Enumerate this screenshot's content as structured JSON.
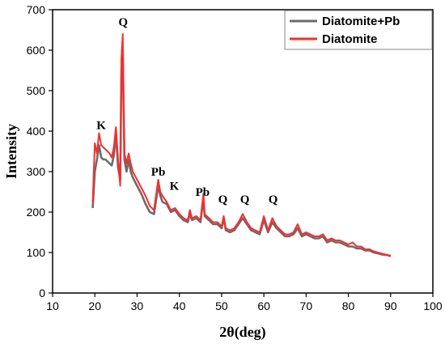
{
  "chart_data": {
    "type": "line",
    "title": "",
    "xlabel": "2θ(deg)",
    "ylabel": "Intensity",
    "xlim": [
      10,
      100
    ],
    "ylim": [
      0,
      700
    ],
    "x_ticks": [
      "10",
      "20",
      "30",
      "40",
      "50",
      "60",
      "70",
      "80",
      "90",
      "100"
    ],
    "y_ticks": [
      "0",
      "100",
      "200",
      "300",
      "400",
      "500",
      "600",
      "700"
    ],
    "grid": false,
    "legend_position": "top-right",
    "colors": {
      "Diatomite+Pb": "#6b6b6b",
      "Diatomite": "#ff2b2b"
    },
    "series": [
      {
        "name": "Diatomite+Pb",
        "x": [
          19.5,
          20,
          20.5,
          21,
          21.5,
          22,
          22.5,
          23,
          23.5,
          24,
          24.5,
          25,
          25.5,
          26,
          26.3,
          26.6,
          27,
          27.5,
          28,
          28.5,
          29,
          30,
          31,
          32,
          33,
          34,
          35,
          35.5,
          36,
          37,
          38,
          39,
          40,
          41,
          42,
          42.5,
          43,
          44,
          45,
          45.7,
          46,
          47,
          48,
          49,
          50,
          50.5,
          51,
          52,
          53,
          54,
          55,
          56,
          57,
          58,
          59,
          60,
          61,
          62,
          63,
          64,
          65,
          66,
          67,
          68,
          69,
          70,
          71,
          72,
          73,
          74,
          75,
          76,
          77,
          78,
          79,
          80,
          81,
          82,
          83,
          84,
          85,
          86,
          87,
          88,
          89,
          90
        ],
        "y": [
          210,
          300,
          330,
          365,
          335,
          330,
          330,
          325,
          320,
          315,
          340,
          395,
          310,
          280,
          555,
          600,
          330,
          300,
          330,
          300,
          285,
          265,
          245,
          220,
          200,
          195,
          265,
          240,
          225,
          220,
          200,
          205,
          190,
          180,
          175,
          195,
          180,
          185,
          175,
          235,
          190,
          180,
          170,
          170,
          160,
          185,
          155,
          150,
          155,
          170,
          185,
          170,
          155,
          150,
          145,
          180,
          150,
          175,
          160,
          150,
          140,
          140,
          145,
          160,
          140,
          145,
          140,
          135,
          135,
          140,
          125,
          130,
          125,
          125,
          120,
          115,
          115,
          110,
          110,
          105,
          105,
          100,
          98,
          95,
          94,
          92
        ]
      },
      {
        "name": "Diatomite",
        "x": [
          19.5,
          20,
          20.5,
          21,
          21.5,
          22,
          22.5,
          23,
          23.5,
          24,
          24.5,
          25,
          25.5,
          26,
          26.3,
          26.6,
          27,
          27.5,
          28,
          28.5,
          29,
          30,
          31,
          32,
          33,
          34,
          35,
          35.5,
          36,
          37,
          38,
          39,
          40,
          41,
          42,
          42.5,
          43,
          44,
          45,
          45.7,
          46,
          47,
          48,
          49,
          50,
          50.5,
          51,
          52,
          53,
          54,
          55,
          56,
          57,
          58,
          59,
          60,
          61,
          62,
          63,
          64,
          65,
          66,
          67,
          68,
          69,
          70,
          71,
          72,
          73,
          74,
          75,
          76,
          77,
          78,
          79,
          80,
          81,
          82,
          83,
          84,
          85,
          86,
          87,
          88,
          89,
          90
        ],
        "y": [
          225,
          370,
          345,
          395,
          365,
          360,
          355,
          350,
          345,
          335,
          360,
          410,
          330,
          265,
          580,
          640,
          345,
          320,
          345,
          320,
          300,
          280,
          260,
          240,
          215,
          205,
          280,
          250,
          240,
          225,
          205,
          210,
          195,
          185,
          180,
          205,
          185,
          190,
          180,
          245,
          195,
          185,
          175,
          175,
          165,
          190,
          160,
          155,
          160,
          175,
          195,
          175,
          160,
          155,
          150,
          190,
          155,
          185,
          165,
          155,
          145,
          145,
          150,
          170,
          145,
          150,
          145,
          140,
          140,
          145,
          130,
          135,
          130,
          130,
          125,
          120,
          125,
          115,
          115,
          108,
          108,
          103,
          100,
          97,
          95,
          90
        ]
      }
    ],
    "annotations": [
      {
        "text": "Q",
        "x": 26.7,
        "y": 660
      },
      {
        "text": "K",
        "x": 21.5,
        "y": 405
      },
      {
        "text": "Pb",
        "x": 35.0,
        "y": 290
      },
      {
        "text": "K",
        "x": 38.8,
        "y": 255
      },
      {
        "text": "Pb",
        "x": 45.5,
        "y": 240
      },
      {
        "text": "Q",
        "x": 50.3,
        "y": 222
      },
      {
        "text": "Q",
        "x": 55.5,
        "y": 222
      },
      {
        "text": "Q",
        "x": 62.2,
        "y": 222
      }
    ]
  }
}
